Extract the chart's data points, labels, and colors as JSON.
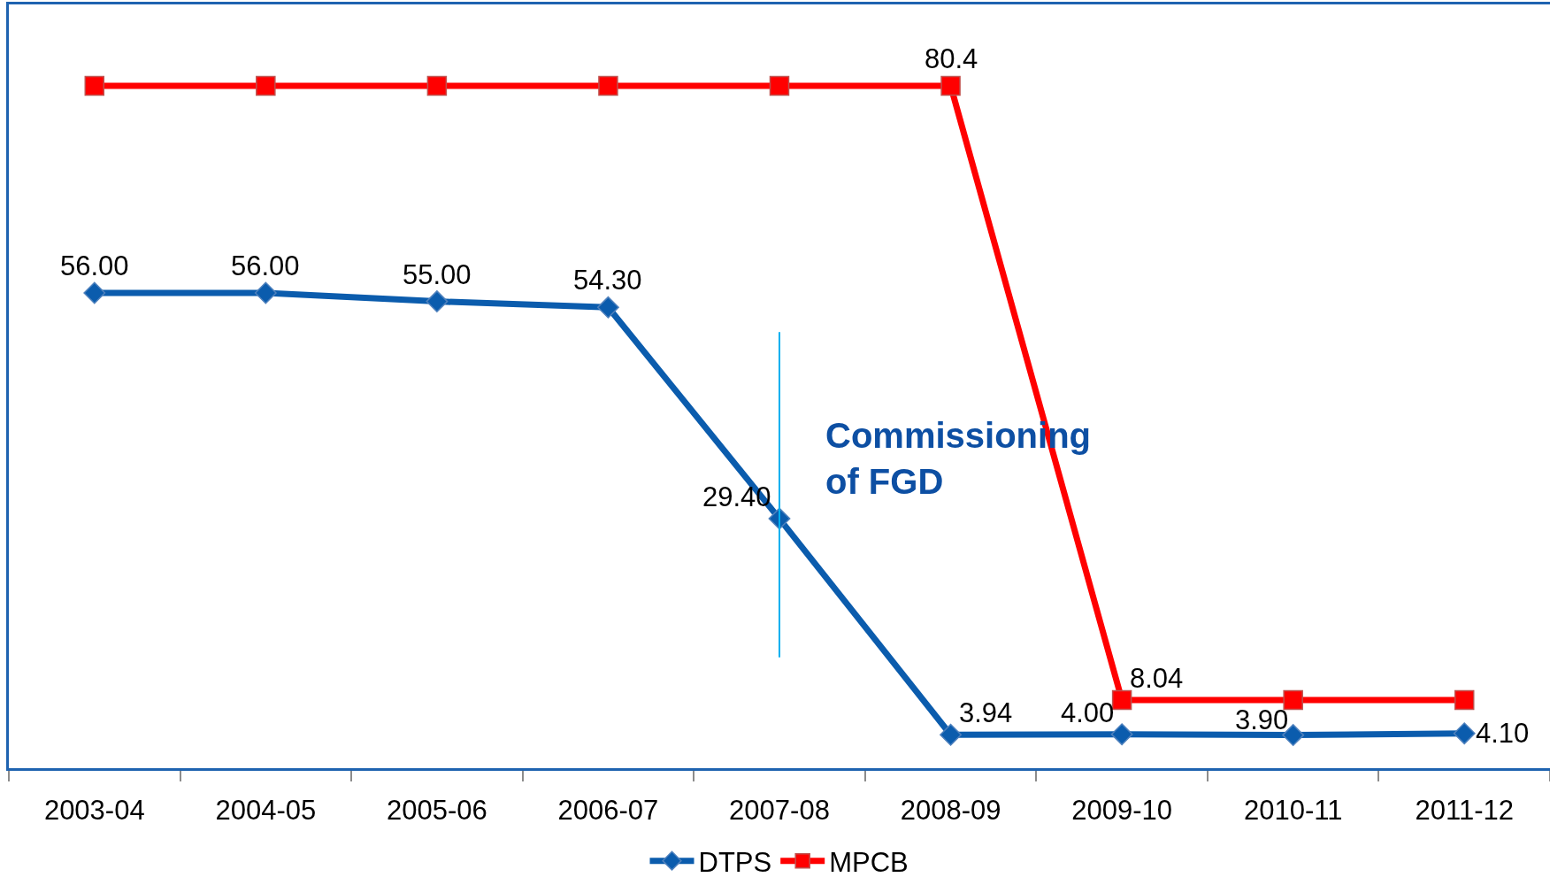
{
  "chart_data": {
    "type": "line",
    "categories": [
      "2003-04",
      "2004-05",
      "2005-06",
      "2006-07",
      "2007-08",
      "2008-09",
      "2009-10",
      "2010-11",
      "2011-12"
    ],
    "series": [
      {
        "name": "DTPS",
        "color": "#0b5cad",
        "marker": "diamond",
        "values": [
          56,
          56,
          55,
          54.3,
          29.4,
          3.94,
          4,
          3.9,
          4.1
        ],
        "value_labels": [
          "56.00",
          "56.00",
          "55.00",
          "54.30",
          "29.40",
          "3.94",
          "4.00",
          "3.90",
          "4.10"
        ]
      },
      {
        "name": "MPCB",
        "color": "#ff0000",
        "marker": "square",
        "values": [
          80.4,
          80.4,
          80.4,
          80.4,
          80.4,
          80.4,
          8.04,
          8.04,
          8.04
        ],
        "value_labels": [
          null,
          null,
          null,
          null,
          null,
          "80.4",
          "8.04",
          null,
          null
        ]
      }
    ],
    "ylim": [
      0,
      90
    ],
    "tick_labels": "x",
    "legend": "bottom",
    "ref_lines": [
      {
        "axis": "x",
        "value": "2007-08",
        "label": "Commissioning\nof FGD",
        "color": "#00b0f0"
      }
    ]
  }
}
